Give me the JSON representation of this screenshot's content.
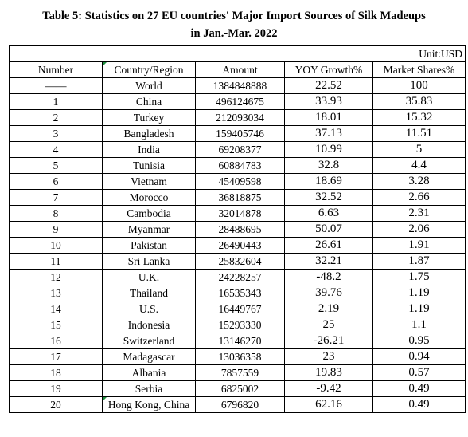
{
  "title_line1": "Table 5: Statistics on 27 EU countries' Major Import Sources of Silk Madeups",
  "title_line2": "in Jan.-Mar. 2022",
  "unit": "Unit:USD",
  "headers": [
    "Number",
    "Country/Region",
    "Amount",
    "YOY Growth%",
    "Market Shares%"
  ],
  "rows": [
    {
      "number": "——",
      "country": "World",
      "amount": "1384848888",
      "yoy": "22.52",
      "share": "100"
    },
    {
      "number": "1",
      "country": "China",
      "amount": "496124675",
      "yoy": "33.93",
      "share": "35.83"
    },
    {
      "number": "2",
      "country": "Turkey",
      "amount": "212093034",
      "yoy": "18.01",
      "share": "15.32"
    },
    {
      "number": "3",
      "country": "Bangladesh",
      "amount": "159405746",
      "yoy": "37.13",
      "share": "11.51"
    },
    {
      "number": "4",
      "country": "India",
      "amount": "69208377",
      "yoy": "10.99",
      "share": "5"
    },
    {
      "number": "5",
      "country": "Tunisia",
      "amount": "60884783",
      "yoy": "32.8",
      "share": "4.4"
    },
    {
      "number": "6",
      "country": "Vietnam",
      "amount": "45409598",
      "yoy": "18.69",
      "share": "3.28"
    },
    {
      "number": "7",
      "country": "Morocco",
      "amount": "36818875",
      "yoy": "32.52",
      "share": "2.66"
    },
    {
      "number": "8",
      "country": "Cambodia",
      "amount": "32014878",
      "yoy": "6.63",
      "share": "2.31"
    },
    {
      "number": "9",
      "country": "Myanmar",
      "amount": "28488695",
      "yoy": "50.07",
      "share": "2.06"
    },
    {
      "number": "10",
      "country": "Pakistan",
      "amount": "26490443",
      "yoy": "26.61",
      "share": "1.91"
    },
    {
      "number": "11",
      "country": "Sri Lanka",
      "amount": "25832604",
      "yoy": "32.21",
      "share": "1.87"
    },
    {
      "number": "12",
      "country": "U.K.",
      "amount": "24228257",
      "yoy": "-48.2",
      "share": "1.75"
    },
    {
      "number": "13",
      "country": "Thailand",
      "amount": "16535343",
      "yoy": "39.76",
      "share": "1.19"
    },
    {
      "number": "14",
      "country": "U.S.",
      "amount": "16449767",
      "yoy": "2.19",
      "share": "1.19"
    },
    {
      "number": "15",
      "country": "Indonesia",
      "amount": "15293330",
      "yoy": "25",
      "share": "1.1"
    },
    {
      "number": "16",
      "country": "Switzerland",
      "amount": "13146270",
      "yoy": "-26.21",
      "share": "0.95"
    },
    {
      "number": "17",
      "country": "Madagascar",
      "amount": "13036358",
      "yoy": "23",
      "share": "0.94"
    },
    {
      "number": "18",
      "country": "Albania",
      "amount": "7857559",
      "yoy": "19.83",
      "share": "0.57"
    },
    {
      "number": "19",
      "country": "Serbia",
      "amount": "6825002",
      "yoy": "-9.42",
      "share": "0.49"
    },
    {
      "number": "20",
      "country": "Hong Kong, China",
      "amount": "6796820",
      "yoy": "62.16",
      "share": "0.49"
    }
  ],
  "colors": {
    "cell_marker": "#1e8f3e"
  }
}
